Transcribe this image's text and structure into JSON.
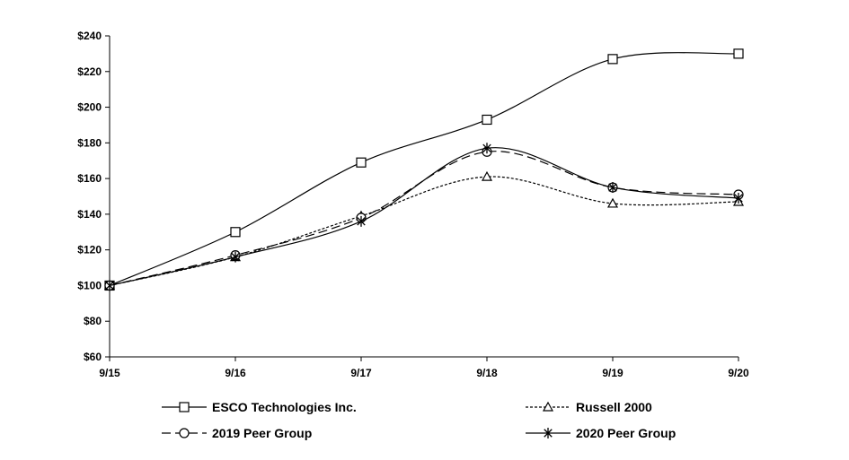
{
  "chart_data": {
    "type": "line",
    "title": "",
    "xlabel": "",
    "ylabel": "",
    "x": [
      "9/15",
      "9/16",
      "9/17",
      "9/18",
      "9/19",
      "9/20"
    ],
    "y_ticks": [
      "$60",
      "$80",
      "$100",
      "$120",
      "$140",
      "$160",
      "$180",
      "$200",
      "$220",
      "$240"
    ],
    "ylim": [
      60,
      240
    ],
    "grid": false,
    "legend_position": "bottom",
    "series": [
      {
        "name": "ESCO Technologies Inc.",
        "marker": "square",
        "line": "solid",
        "values": [
          100,
          130,
          169,
          193,
          227,
          230
        ]
      },
      {
        "name": "Russell 2000",
        "marker": "triangle",
        "line": "dotted",
        "values": [
          100,
          116,
          139,
          161,
          146,
          147
        ]
      },
      {
        "name": "2019 Peer Group",
        "marker": "circle",
        "line": "dashed",
        "values": [
          100,
          117,
          138,
          175,
          155,
          151
        ]
      },
      {
        "name": "2020 Peer Group",
        "marker": "star",
        "line": "solid",
        "values": [
          100,
          116,
          136,
          177,
          155,
          149
        ]
      }
    ]
  }
}
